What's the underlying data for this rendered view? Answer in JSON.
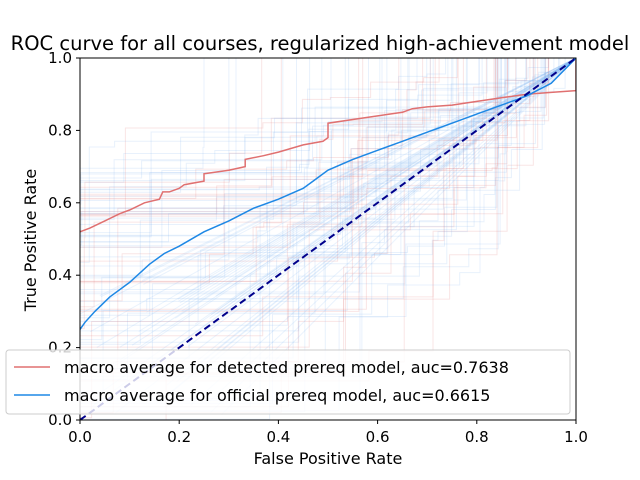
{
  "chart_data": {
    "type": "line",
    "title": "ROC curve for all courses, regularized high-achievement model",
    "xlabel": "False Positive Rate",
    "ylabel": "True Positive Rate",
    "xlim": [
      0.0,
      1.0
    ],
    "ylim": [
      0.0,
      1.0
    ],
    "xticks": [
      "0.0",
      "0.2",
      "0.4",
      "0.6",
      "0.8",
      "1.0"
    ],
    "yticks": [
      "0.0",
      "0.2",
      "0.4",
      "0.6",
      "0.8",
      "1.0"
    ],
    "legend_position": "lower-left",
    "grid": false,
    "series": [
      {
        "name": "macro average for detected prereq model, auc=0.7638",
        "color": "#e07070",
        "x": [
          0.0,
          0.02,
          0.05,
          0.08,
          0.1,
          0.13,
          0.16,
          0.167,
          0.18,
          0.2,
          0.21,
          0.25,
          0.25,
          0.3,
          0.333,
          0.333,
          0.37,
          0.4,
          0.45,
          0.49,
          0.5,
          0.5,
          0.55,
          0.6,
          0.65,
          0.67,
          0.7,
          0.75,
          0.8,
          0.85,
          0.9,
          0.95,
          1.0,
          1.0
        ],
        "y": [
          0.52,
          0.53,
          0.55,
          0.57,
          0.58,
          0.6,
          0.61,
          0.63,
          0.63,
          0.64,
          0.65,
          0.66,
          0.68,
          0.69,
          0.7,
          0.72,
          0.73,
          0.74,
          0.76,
          0.77,
          0.78,
          0.82,
          0.83,
          0.84,
          0.85,
          0.86,
          0.865,
          0.87,
          0.88,
          0.89,
          0.9,
          0.905,
          0.91,
          1.0
        ]
      },
      {
        "name": "macro average for official prereq model, auc=0.6615",
        "color": "#1e88e5",
        "x": [
          0.0,
          0.01,
          0.03,
          0.06,
          0.1,
          0.14,
          0.17,
          0.2,
          0.25,
          0.3,
          0.35,
          0.4,
          0.45,
          0.47,
          0.5,
          0.55,
          0.6,
          0.65,
          0.7,
          0.75,
          0.8,
          0.85,
          0.9,
          0.95,
          1.0
        ],
        "y": [
          0.25,
          0.27,
          0.3,
          0.34,
          0.38,
          0.43,
          0.46,
          0.48,
          0.52,
          0.55,
          0.585,
          0.61,
          0.64,
          0.66,
          0.69,
          0.72,
          0.745,
          0.77,
          0.795,
          0.82,
          0.845,
          0.87,
          0.895,
          0.93,
          1.0
        ]
      },
      {
        "name": "",
        "color": "#00008b",
        "dashed": true,
        "x": [
          0.0,
          1.0
        ],
        "y": [
          0.0,
          1.0
        ]
      }
    ]
  }
}
